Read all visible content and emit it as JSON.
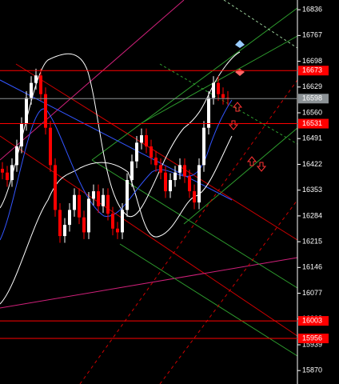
{
  "chart_data": {
    "type": "candlestick",
    "open": [
      16410,
      16400,
      16380,
      16420,
      16470,
      16530,
      16600,
      16640,
      16660,
      16610,
      16520,
      16420,
      16300,
      16230,
      16260,
      16300,
      16340,
      16280,
      16240,
      16330,
      16350,
      16310,
      16340,
      16290,
      16250,
      16240,
      16300,
      16380,
      16430,
      16480,
      16500,
      16470,
      16440,
      16420,
      16400,
      16350,
      16380,
      16400,
      16420,
      16390,
      16350,
      16320,
      16420,
      16520,
      16600,
      16640,
      16610,
      16600
    ],
    "high": [
      16428,
      16418,
      16438,
      16488,
      16548,
      16618,
      16658,
      16678,
      16678,
      16628,
      16538,
      16438,
      16318,
      16278,
      16318,
      16358,
      16358,
      16298,
      16348,
      16368,
      16368,
      16358,
      16358,
      16308,
      16268,
      16318,
      16398,
      16448,
      16498,
      16518,
      16518,
      16488,
      16458,
      16438,
      16418,
      16398,
      16418,
      16438,
      16438,
      16408,
      16368,
      16438,
      16538,
      16618,
      16658,
      16658,
      16628,
      16618
    ],
    "low": [
      16382,
      16362,
      16362,
      16402,
      16452,
      16512,
      16582,
      16622,
      16592,
      16502,
      16402,
      16282,
      16212,
      16212,
      16242,
      16282,
      16262,
      16222,
      16222,
      16312,
      16292,
      16292,
      16272,
      16232,
      16222,
      16222,
      16282,
      16362,
      16412,
      16462,
      16452,
      16422,
      16402,
      16382,
      16332,
      16332,
      16362,
      16382,
      16372,
      16332,
      16302,
      16302,
      16402,
      16502,
      16582,
      16592,
      16582,
      16580
    ],
    "close": [
      16400,
      16380,
      16420,
      16470,
      16530,
      16600,
      16640,
      16660,
      16610,
      16520,
      16420,
      16300,
      16230,
      16260,
      16300,
      16340,
      16280,
      16240,
      16330,
      16350,
      16310,
      16340,
      16290,
      16250,
      16240,
      16300,
      16380,
      16430,
      16480,
      16500,
      16470,
      16440,
      16420,
      16400,
      16350,
      16380,
      16400,
      16420,
      16390,
      16350,
      16320,
      16420,
      16520,
      16600,
      16640,
      16610,
      16600,
      16598
    ],
    "up_color": "#ffffff",
    "down_color": "#ff0000",
    "ylim": [
      15834,
      16862
    ],
    "yticks": [
      16836,
      16767,
      16698,
      16629,
      16560,
      16491,
      16422,
      16353,
      16284,
      16215,
      16146,
      16077,
      16008,
      15939,
      15870
    ],
    "levels": [
      {
        "value": 16673,
        "color": "#ff0000"
      },
      {
        "value": 16598,
        "color": "#8c9296"
      },
      {
        "value": 16531,
        "color": "#ff0000"
      },
      {
        "value": 16003,
        "color": "#ff0000"
      },
      {
        "value": 15956,
        "color": "#ff0000"
      }
    ]
  }
}
